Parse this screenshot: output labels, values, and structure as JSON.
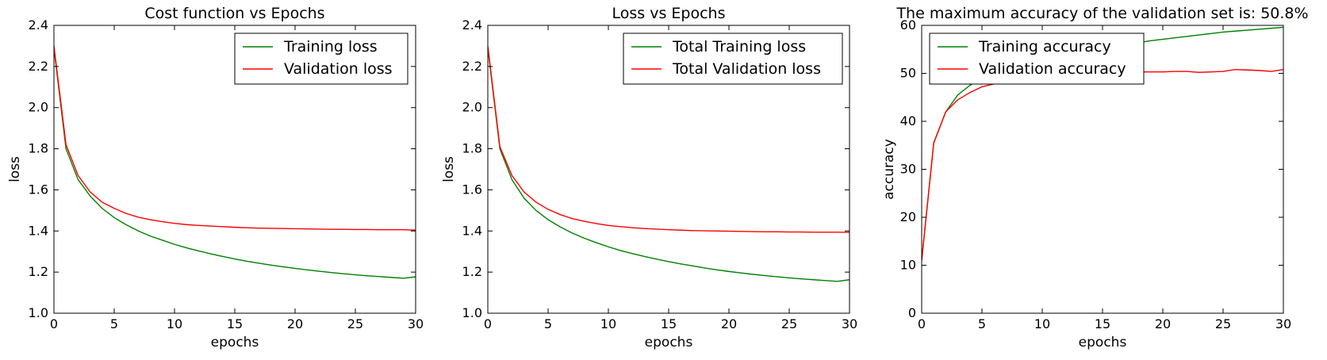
{
  "chart_data": [
    {
      "type": "line",
      "title": "Cost function vs Epochs",
      "xlabel": "epochs",
      "ylabel": "loss",
      "xlim": [
        0,
        30
      ],
      "ylim": [
        1.0,
        2.4
      ],
      "xticks": [
        0,
        5,
        10,
        15,
        20,
        25,
        30
      ],
      "yticks": [
        1.0,
        1.2,
        1.4,
        1.6,
        1.8,
        2.0,
        2.2,
        2.4
      ],
      "tick_decimals": 1,
      "legend_position": "top-right",
      "x": [
        0,
        1,
        2,
        3,
        4,
        5,
        6,
        7,
        8,
        9,
        10,
        11,
        12,
        13,
        14,
        15,
        16,
        17,
        18,
        19,
        20,
        21,
        22,
        23,
        24,
        25,
        26,
        27,
        28,
        29,
        30
      ],
      "series": [
        {
          "name": "Training loss",
          "color": "#008000",
          "values": [
            2.29,
            1.8,
            1.65,
            1.57,
            1.51,
            1.465,
            1.43,
            1.4,
            1.375,
            1.355,
            1.335,
            1.318,
            1.303,
            1.289,
            1.276,
            1.264,
            1.253,
            1.243,
            1.234,
            1.226,
            1.218,
            1.211,
            1.204,
            1.198,
            1.192,
            1.187,
            1.182,
            1.178,
            1.174,
            1.17,
            1.177
          ]
        },
        {
          "name": "Validation loss",
          "color": "#ff0000",
          "values": [
            2.3,
            1.82,
            1.67,
            1.59,
            1.54,
            1.51,
            1.485,
            1.467,
            1.455,
            1.445,
            1.437,
            1.431,
            1.427,
            1.424,
            1.421,
            1.418,
            1.416,
            1.414,
            1.413,
            1.412,
            1.411,
            1.41,
            1.409,
            1.408,
            1.408,
            1.407,
            1.407,
            1.406,
            1.406,
            1.406,
            1.404
          ]
        }
      ]
    },
    {
      "type": "line",
      "title": "Loss vs Epochs",
      "xlabel": "epochs",
      "ylabel": "loss",
      "xlim": [
        0,
        30
      ],
      "ylim": [
        1.0,
        2.4
      ],
      "xticks": [
        0,
        5,
        10,
        15,
        20,
        25,
        30
      ],
      "yticks": [
        1.0,
        1.2,
        1.4,
        1.6,
        1.8,
        2.0,
        2.2,
        2.4
      ],
      "tick_decimals": 1,
      "legend_position": "top-right",
      "x": [
        0,
        1,
        2,
        3,
        4,
        5,
        6,
        7,
        8,
        9,
        10,
        11,
        12,
        13,
        14,
        15,
        16,
        17,
        18,
        19,
        20,
        21,
        22,
        23,
        24,
        25,
        26,
        27,
        28,
        29,
        30
      ],
      "series": [
        {
          "name": "Total Training loss",
          "color": "#008000",
          "values": [
            2.29,
            1.8,
            1.65,
            1.56,
            1.5,
            1.455,
            1.42,
            1.39,
            1.365,
            1.343,
            1.323,
            1.305,
            1.29,
            1.276,
            1.263,
            1.251,
            1.24,
            1.23,
            1.22,
            1.211,
            1.203,
            1.196,
            1.189,
            1.183,
            1.177,
            1.172,
            1.167,
            1.163,
            1.159,
            1.155,
            1.163
          ]
        },
        {
          "name": "Total Validation loss",
          "color": "#ff0000",
          "values": [
            2.3,
            1.81,
            1.67,
            1.59,
            1.54,
            1.505,
            1.48,
            1.46,
            1.447,
            1.436,
            1.427,
            1.421,
            1.416,
            1.412,
            1.409,
            1.406,
            1.404,
            1.402,
            1.401,
            1.4,
            1.399,
            1.398,
            1.397,
            1.396,
            1.396,
            1.395,
            1.395,
            1.394,
            1.394,
            1.394,
            1.393
          ]
        }
      ]
    },
    {
      "type": "line",
      "title": "The maximum accuracy of the validation set is: 50.8%",
      "xlabel": "epochs",
      "ylabel": "accuracy",
      "xlim": [
        0,
        30
      ],
      "ylim": [
        0,
        60
      ],
      "xticks": [
        0,
        5,
        10,
        15,
        20,
        25,
        30
      ],
      "yticks": [
        0,
        10,
        20,
        30,
        40,
        50,
        60
      ],
      "tick_decimals": 0,
      "legend_position": "top-left",
      "x": [
        0,
        1,
        2,
        3,
        4,
        5,
        6,
        7,
        8,
        9,
        10,
        11,
        12,
        13,
        14,
        15,
        16,
        17,
        18,
        19,
        20,
        21,
        22,
        23,
        24,
        25,
        26,
        27,
        28,
        29,
        30
      ],
      "series": [
        {
          "name": "Training accuracy",
          "color": "#008000",
          "values": [
            11.0,
            35.5,
            42.0,
            45.5,
            47.5,
            49.0,
            50.0,
            50.8,
            51.5,
            52.2,
            52.8,
            53.3,
            53.8,
            54.3,
            54.8,
            55.2,
            55.6,
            56.0,
            56.4,
            56.8,
            57.1,
            57.4,
            57.7,
            58.0,
            58.3,
            58.6,
            58.8,
            59.0,
            59.2,
            59.4,
            59.6
          ]
        },
        {
          "name": "Validation accuracy",
          "color": "#ff0000",
          "values": [
            11.0,
            35.5,
            42.0,
            44.5,
            46.0,
            47.2,
            47.8,
            48.3,
            48.8,
            49.2,
            49.5,
            49.7,
            49.8,
            50.0,
            50.0,
            50.1,
            50.2,
            50.2,
            50.3,
            50.3,
            50.3,
            50.4,
            50.4,
            50.2,
            50.3,
            50.4,
            50.8,
            50.7,
            50.6,
            50.4,
            50.8
          ]
        }
      ]
    }
  ]
}
